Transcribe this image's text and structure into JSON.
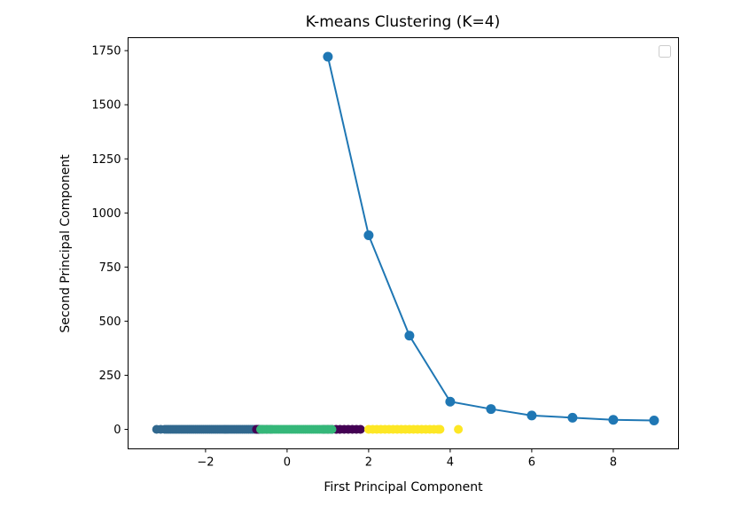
{
  "chart_data": {
    "type": "scatter",
    "title": "K-means Clustering (K=4)",
    "xlabel": "First Principal Component",
    "ylabel": "Second Principal Component",
    "xlim": [
      -3.9,
      9.6
    ],
    "ylim": [
      -90,
      1810
    ],
    "xticks": [
      -2,
      0,
      2,
      4,
      6,
      8
    ],
    "xtick_labels": [
      "−2",
      "0",
      "2",
      "4",
      "6",
      "8"
    ],
    "yticks": [
      0,
      250,
      500,
      750,
      1000,
      1250,
      1500,
      1750
    ],
    "ytick_labels": [
      "0",
      "250",
      "500",
      "750",
      "1000",
      "1250",
      "1500",
      "1750"
    ],
    "grid": false,
    "legend": {
      "placement": "top-right",
      "entries": []
    },
    "clusters": [
      {
        "color": "#31688e",
        "x": [
          -3.2,
          -3.1,
          -3.0,
          -2.95,
          -2.9,
          -2.85,
          -2.8,
          -2.75,
          -2.7,
          -2.65,
          -2.6,
          -2.55,
          -2.5,
          -2.45,
          -2.4,
          -2.35,
          -2.3,
          -2.25,
          -2.2,
          -2.15,
          -2.1,
          -2.05,
          -2.0,
          -1.95,
          -1.9,
          -1.85,
          -1.8,
          -1.75,
          -1.7,
          -1.65,
          -1.6,
          -1.55,
          -1.5,
          -1.45,
          -1.4,
          -1.35,
          -1.3,
          -1.25,
          -1.2,
          -1.15,
          -1.1,
          -1.05,
          -1.0,
          -0.95,
          -0.9,
          -0.85,
          -0.8,
          -0.75,
          -0.7,
          -0.65
        ],
        "y": 0
      },
      {
        "color": "#440154",
        "x": [
          -0.75,
          -0.7,
          -0.6,
          -0.5,
          -0.4,
          0.9,
          1.0,
          1.1,
          1.2,
          1.3,
          1.4,
          1.5,
          1.6,
          1.7,
          1.8
        ],
        "y": 0
      },
      {
        "color": "#35b779",
        "x": [
          -0.65,
          -0.6,
          -0.55,
          -0.5,
          -0.45,
          -0.4,
          -0.35,
          -0.3,
          -0.25,
          -0.2,
          -0.15,
          -0.1,
          -0.05,
          0.0,
          0.05,
          0.1,
          0.15,
          0.2,
          0.25,
          0.3,
          0.35,
          0.4,
          0.45,
          0.5,
          0.55,
          0.6,
          0.65,
          0.7,
          0.75,
          0.8,
          0.85,
          0.9,
          0.95,
          1.0,
          1.05,
          1.1
        ],
        "y": 0
      },
      {
        "color": "#fde725",
        "x": [
          2.0,
          2.1,
          2.2,
          2.3,
          2.4,
          2.5,
          2.6,
          2.7,
          2.8,
          2.9,
          3.0,
          3.1,
          3.2,
          3.3,
          3.4,
          3.5,
          3.6,
          3.7,
          3.75,
          4.2
        ],
        "y": 0
      }
    ],
    "line_series": {
      "color": "#1f77b4",
      "x": [
        1,
        2,
        3,
        4,
        5,
        6,
        7,
        8,
        9
      ],
      "y": [
        1722,
        897,
        433,
        128,
        94,
        64,
        54,
        44,
        41
      ]
    }
  }
}
